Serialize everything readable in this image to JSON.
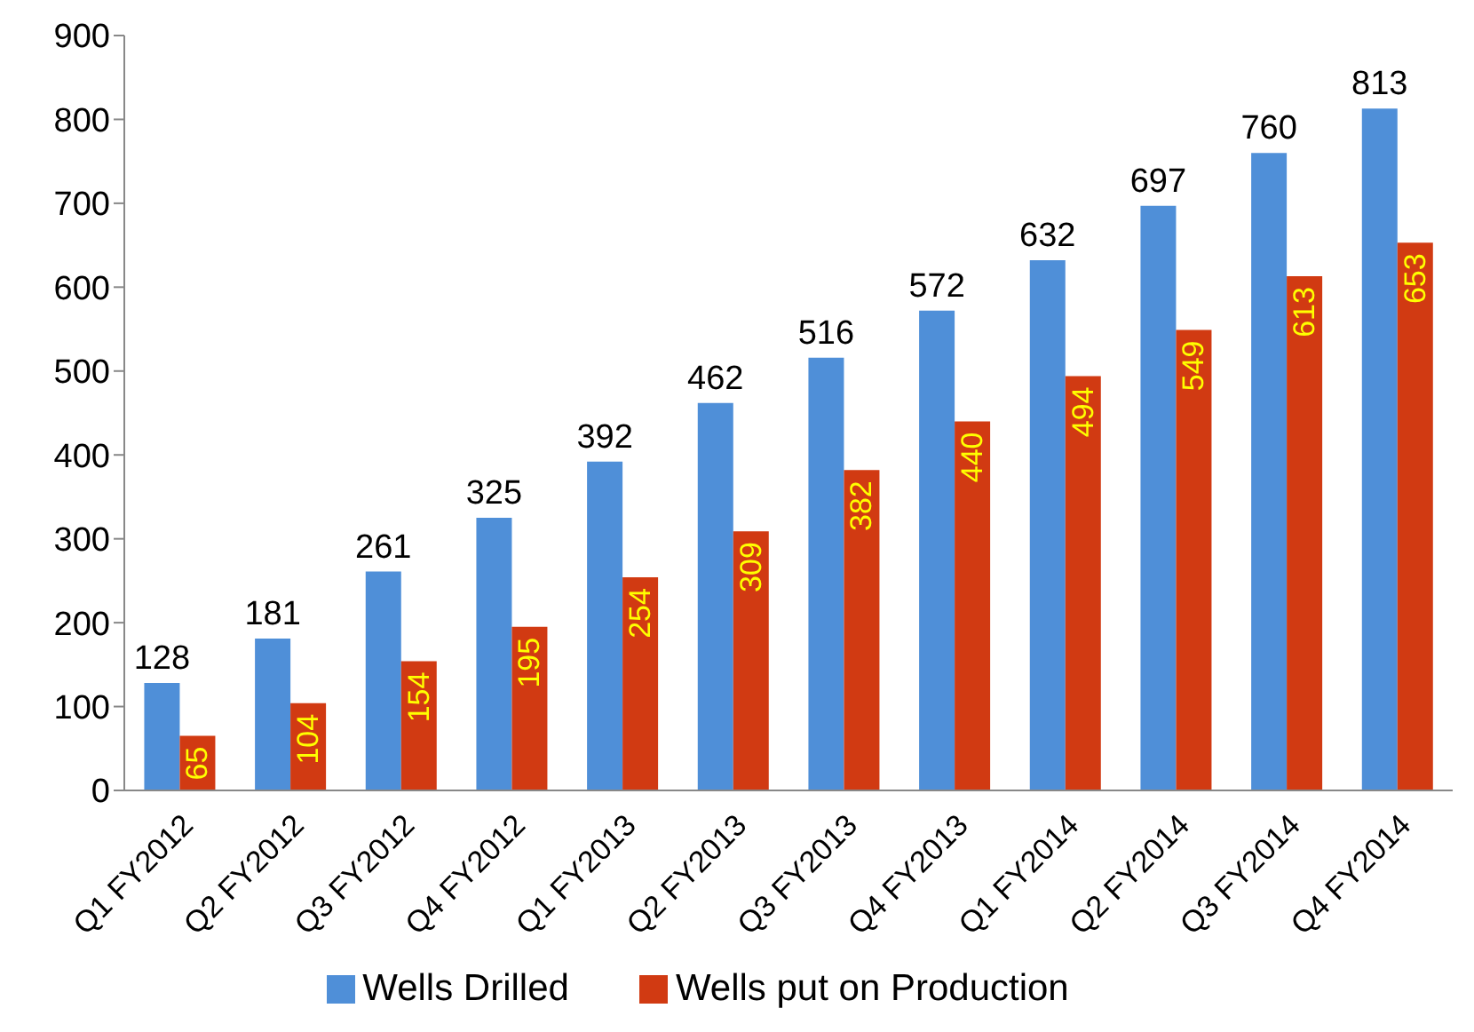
{
  "chart_data": {
    "type": "bar",
    "categories": [
      "Q1 FY2012",
      "Q2 FY2012",
      "Q3 FY2012",
      "Q4 FY2012",
      "Q1 FY2013",
      "Q2 FY2013",
      "Q3 FY2013",
      "Q4 FY2013",
      "Q1 FY2014",
      "Q2 FY2014",
      "Q3 FY2014",
      "Q4 FY2014"
    ],
    "series": [
      {
        "name": "Wells Drilled",
        "color": "#4f8fd8",
        "values": [
          128,
          181,
          261,
          325,
          392,
          462,
          516,
          572,
          632,
          697,
          760,
          813
        ]
      },
      {
        "name": "Wells put on Production",
        "color": "#d13a12",
        "values": [
          65,
          104,
          154,
          195,
          254,
          309,
          382,
          440,
          494,
          549,
          613,
          653
        ]
      }
    ],
    "ylim": [
      0,
      900
    ],
    "yticks": [
      0,
      100,
      200,
      300,
      400,
      500,
      600,
      700,
      800,
      900
    ],
    "grid": false,
    "legend": "bottom",
    "data_labels": true
  }
}
